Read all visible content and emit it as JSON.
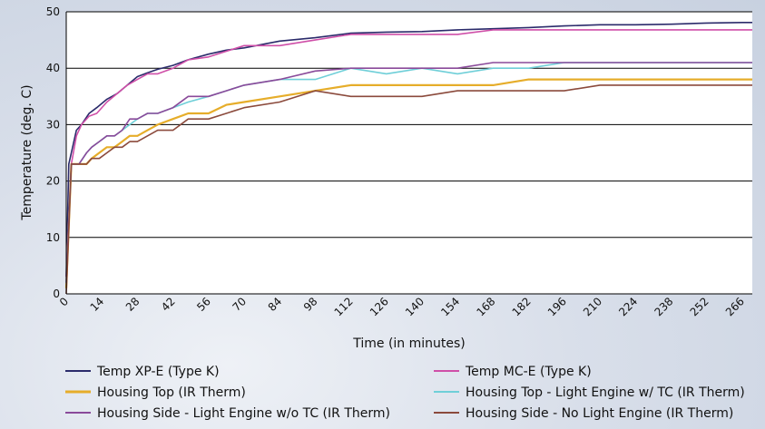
{
  "chart_data": {
    "type": "line",
    "title": "",
    "xlabel": "Time (in minutes)",
    "ylabel": "Temperature (deg. C)",
    "xlim": [
      0,
      270
    ],
    "ylim": [
      0,
      50
    ],
    "x_ticks": [
      0,
      14,
      28,
      42,
      56,
      70,
      84,
      98,
      112,
      126,
      140,
      154,
      168,
      182,
      196,
      210,
      224,
      238,
      252,
      266
    ],
    "y_ticks": [
      0,
      10,
      20,
      30,
      40,
      50
    ],
    "grid": "horizontal",
    "legend_position": "bottom",
    "series": [
      {
        "name": "Temp XP-E (Type K)",
        "color": "#2b2b6b",
        "x": [
          0,
          1,
          2,
          4,
          6,
          9,
          12,
          16,
          20,
          24,
          28,
          32,
          36,
          42,
          48,
          56,
          63,
          70,
          84,
          98,
          112,
          126,
          140,
          154,
          168,
          182,
          196,
          210,
          224,
          238,
          252,
          266,
          270
        ],
        "y": [
          3,
          23,
          25,
          29,
          30,
          32,
          33,
          34.5,
          35.5,
          37,
          38.5,
          39.2,
          39.8,
          40.5,
          41.5,
          42.5,
          43.2,
          43.6,
          44.8,
          45.4,
          46.2,
          46.4,
          46.5,
          46.8,
          47,
          47.2,
          47.5,
          47.7,
          47.7,
          47.8,
          48,
          48.1,
          48.1
        ]
      },
      {
        "name": "Temp MC-E (Type K)",
        "color": "#cf4fa8",
        "x": [
          0,
          2,
          4,
          6,
          9,
          12,
          16,
          20,
          24,
          28,
          32,
          36,
          42,
          48,
          56,
          63,
          70,
          84,
          98,
          112,
          126,
          140,
          154,
          168,
          182,
          196,
          210,
          224,
          238,
          252,
          266,
          270
        ],
        "y": [
          3,
          23,
          28,
          30,
          31.5,
          32,
          34,
          35.5,
          37,
          38,
          39,
          39,
          40,
          41.5,
          42,
          43,
          44,
          44,
          45,
          46,
          46,
          46,
          46,
          46.8,
          46.8,
          46.8,
          46.8,
          46.8,
          46.8,
          46.8,
          46.8,
          46.8
        ]
      },
      {
        "name": "Housing Top (IR Therm)",
        "color": "#e6ad2a",
        "x": [
          0,
          2,
          5,
          8,
          10,
          13,
          16,
          19,
          22,
          25,
          28,
          32,
          36,
          42,
          48,
          56,
          63,
          70,
          84,
          98,
          112,
          126,
          140,
          154,
          168,
          182,
          196,
          210,
          224,
          238,
          252,
          266,
          270
        ],
        "y": [
          1,
          23,
          23,
          23,
          24,
          25,
          26,
          26,
          27,
          28,
          28,
          29,
          30,
          31,
          32,
          32,
          33.5,
          34,
          35,
          36,
          37,
          37,
          37,
          37,
          37,
          38,
          38,
          38,
          38,
          38,
          38,
          38,
          38
        ]
      },
      {
        "name": "Housing Top - Light Engine w/ TC (IR Therm)",
        "color": "#6fcfd8",
        "x": [
          0,
          2,
          5,
          8,
          10,
          13,
          16,
          19,
          22,
          25,
          28,
          32,
          36,
          42,
          48,
          56,
          63,
          70,
          84,
          98,
          112,
          126,
          140,
          154,
          168,
          182,
          196,
          210,
          224,
          238,
          252,
          266,
          270
        ],
        "y": [
          2,
          23,
          23,
          25,
          26,
          27,
          28,
          28,
          29,
          30,
          31,
          32,
          32,
          33,
          34,
          35,
          36,
          37,
          38,
          38,
          40,
          39,
          40,
          39,
          40,
          40,
          41,
          41,
          41,
          41,
          41,
          41,
          41
        ]
      },
      {
        "name": "Housing Side - Light Engine w/o TC (IR Therm)",
        "color": "#8a4a9a",
        "x": [
          0,
          2,
          5,
          8,
          10,
          13,
          16,
          19,
          22,
          25,
          28,
          32,
          36,
          42,
          48,
          56,
          63,
          70,
          84,
          98,
          112,
          126,
          140,
          154,
          168,
          182,
          196,
          210,
          224,
          238,
          252,
          266,
          270
        ],
        "y": [
          2,
          23,
          23,
          25,
          26,
          27,
          28,
          28,
          29,
          31,
          31,
          32,
          32,
          33,
          35,
          35,
          36,
          37,
          38,
          39.5,
          40,
          40,
          40,
          40,
          41,
          41,
          41,
          41,
          41,
          41,
          41,
          41,
          41
        ]
      },
      {
        "name": "Housing Side - No Light Engine (IR Therm)",
        "color": "#8b4a3c",
        "x": [
          0,
          2,
          5,
          8,
          10,
          13,
          16,
          19,
          22,
          25,
          28,
          32,
          36,
          42,
          48,
          56,
          63,
          70,
          84,
          98,
          112,
          126,
          140,
          154,
          168,
          182,
          196,
          210,
          224,
          238,
          252,
          266,
          270
        ],
        "y": [
          0,
          23,
          23,
          23,
          24,
          24,
          25,
          26,
          26,
          27,
          27,
          28,
          29,
          29,
          31,
          31,
          32,
          33,
          34,
          36,
          35,
          35,
          35,
          36,
          36,
          36,
          36,
          37,
          37,
          37,
          37,
          37,
          37
        ]
      }
    ]
  }
}
